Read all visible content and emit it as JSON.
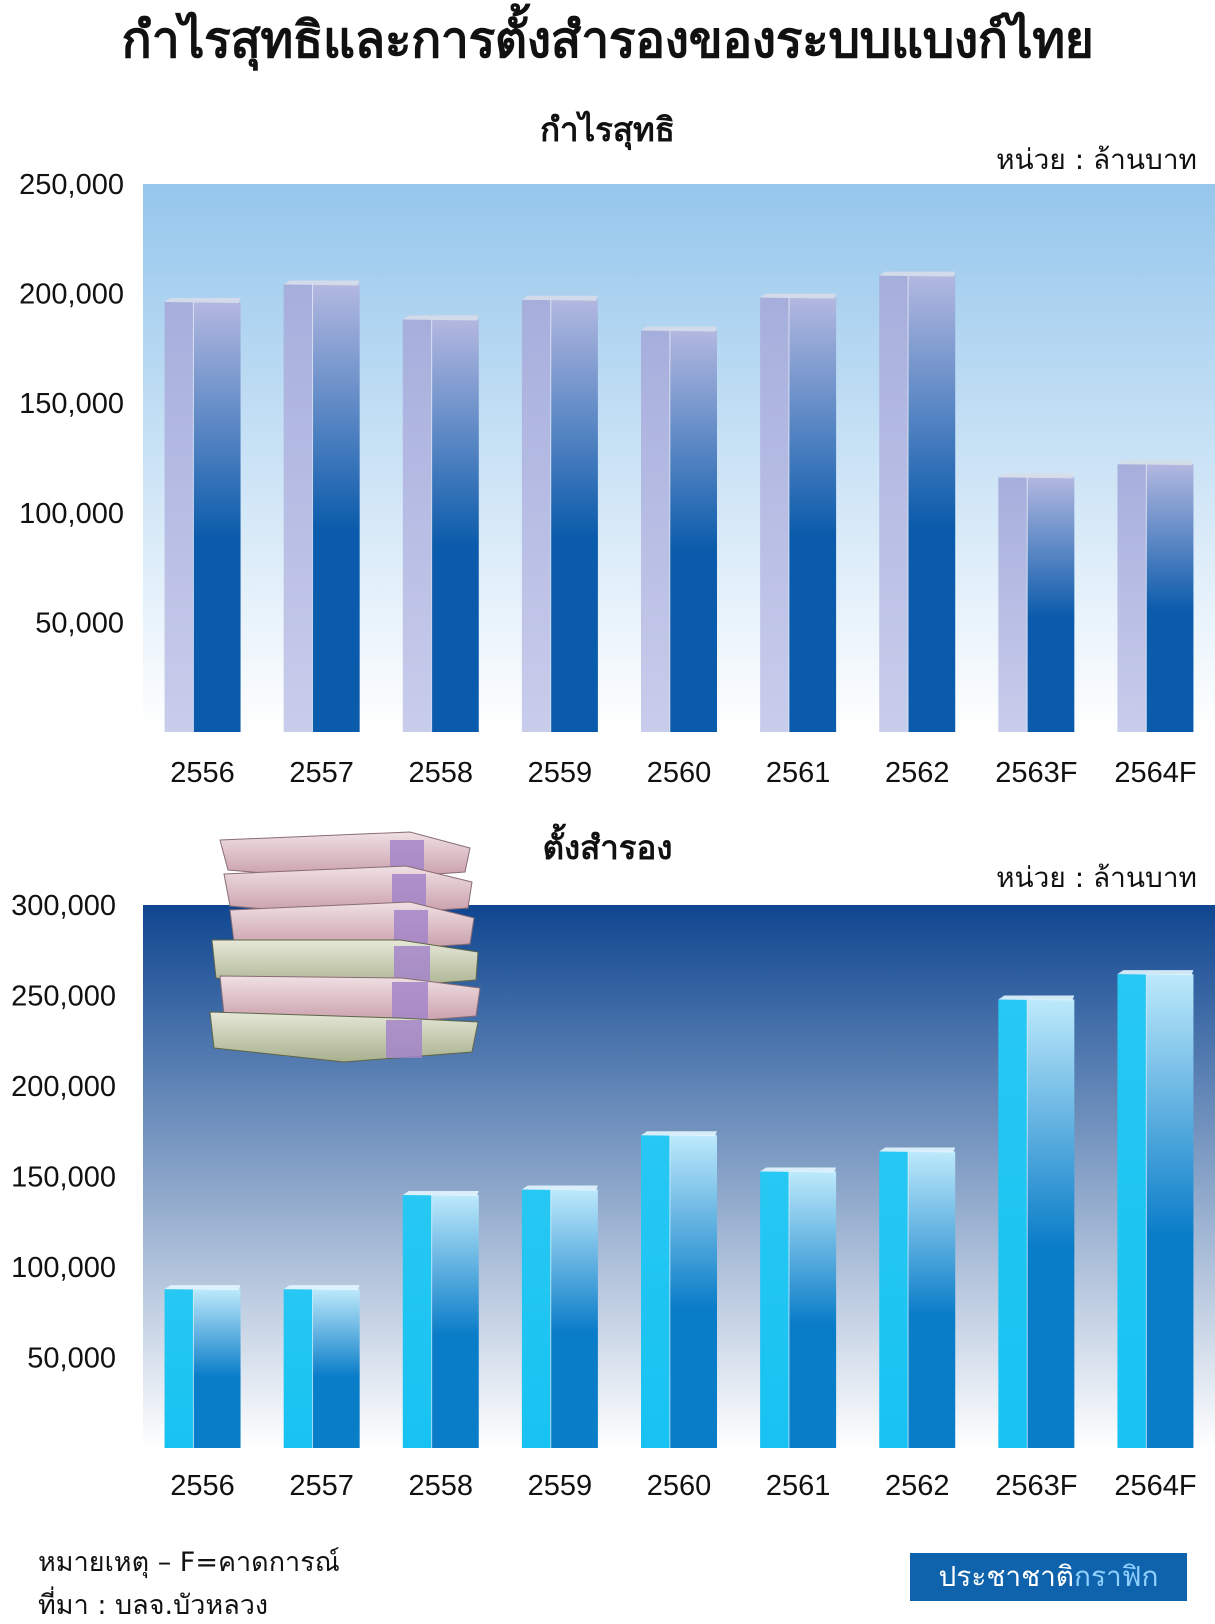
{
  "title": "กำไรสุทธิและการตั้งสำรองของระบบแบงก์ไทย",
  "colors": {
    "profit_bg_top": "#95c6ec",
    "profit_bar_light": "#b3b8e0",
    "profit_bar_dark": "#0a5bab",
    "provision_bg_top": "#0f4690",
    "provision_bar_light": "#17c2f2",
    "provision_bar_dark": "#0a7dc8",
    "brand_bg": "#0f63ad"
  },
  "illustration": {
    "icon": "banknote-stack-icon"
  },
  "chart_data": [
    {
      "type": "bar",
      "title": "กำไรสุทธิ",
      "unit": "หน่วย : ล้านบาท",
      "categories": [
        "2556",
        "2557",
        "2558",
        "2559",
        "2560",
        "2561",
        "2562",
        "2563F",
        "2564F"
      ],
      "values": [
        198000,
        206000,
        190000,
        199000,
        185000,
        200000,
        210000,
        118000,
        124000
      ],
      "yticks": [
        50000,
        100000,
        150000,
        200000,
        250000
      ],
      "ytick_labels": [
        "50,000",
        "100,000",
        "150,000",
        "200,000",
        "250,000"
      ],
      "ylim": [
        0,
        250000
      ],
      "grid": false,
      "legend": "none"
    },
    {
      "type": "bar",
      "title": "ตั้งสำรอง",
      "unit": "หน่วย : ล้านบาท",
      "categories": [
        "2556",
        "2557",
        "2558",
        "2559",
        "2560",
        "2561",
        "2562",
        "2563F",
        "2564F"
      ],
      "values": [
        90000,
        90000,
        142000,
        145000,
        175000,
        155000,
        166000,
        250000,
        264000
      ],
      "yticks": [
        50000,
        100000,
        150000,
        200000,
        250000,
        300000
      ],
      "ytick_labels": [
        "50,000",
        "100,000",
        "150,000",
        "200,000",
        "250,000",
        "300,000"
      ],
      "ylim": [
        0,
        300000
      ],
      "grid": false,
      "legend": "none"
    }
  ],
  "footnote": {
    "note": "หมายเหตุ – F=คาดการณ์",
    "source": "ที่มา : บลจ.บัวหลวง"
  },
  "brand": {
    "main": "ประชาชาติ",
    "accent": "กราฟิก"
  }
}
